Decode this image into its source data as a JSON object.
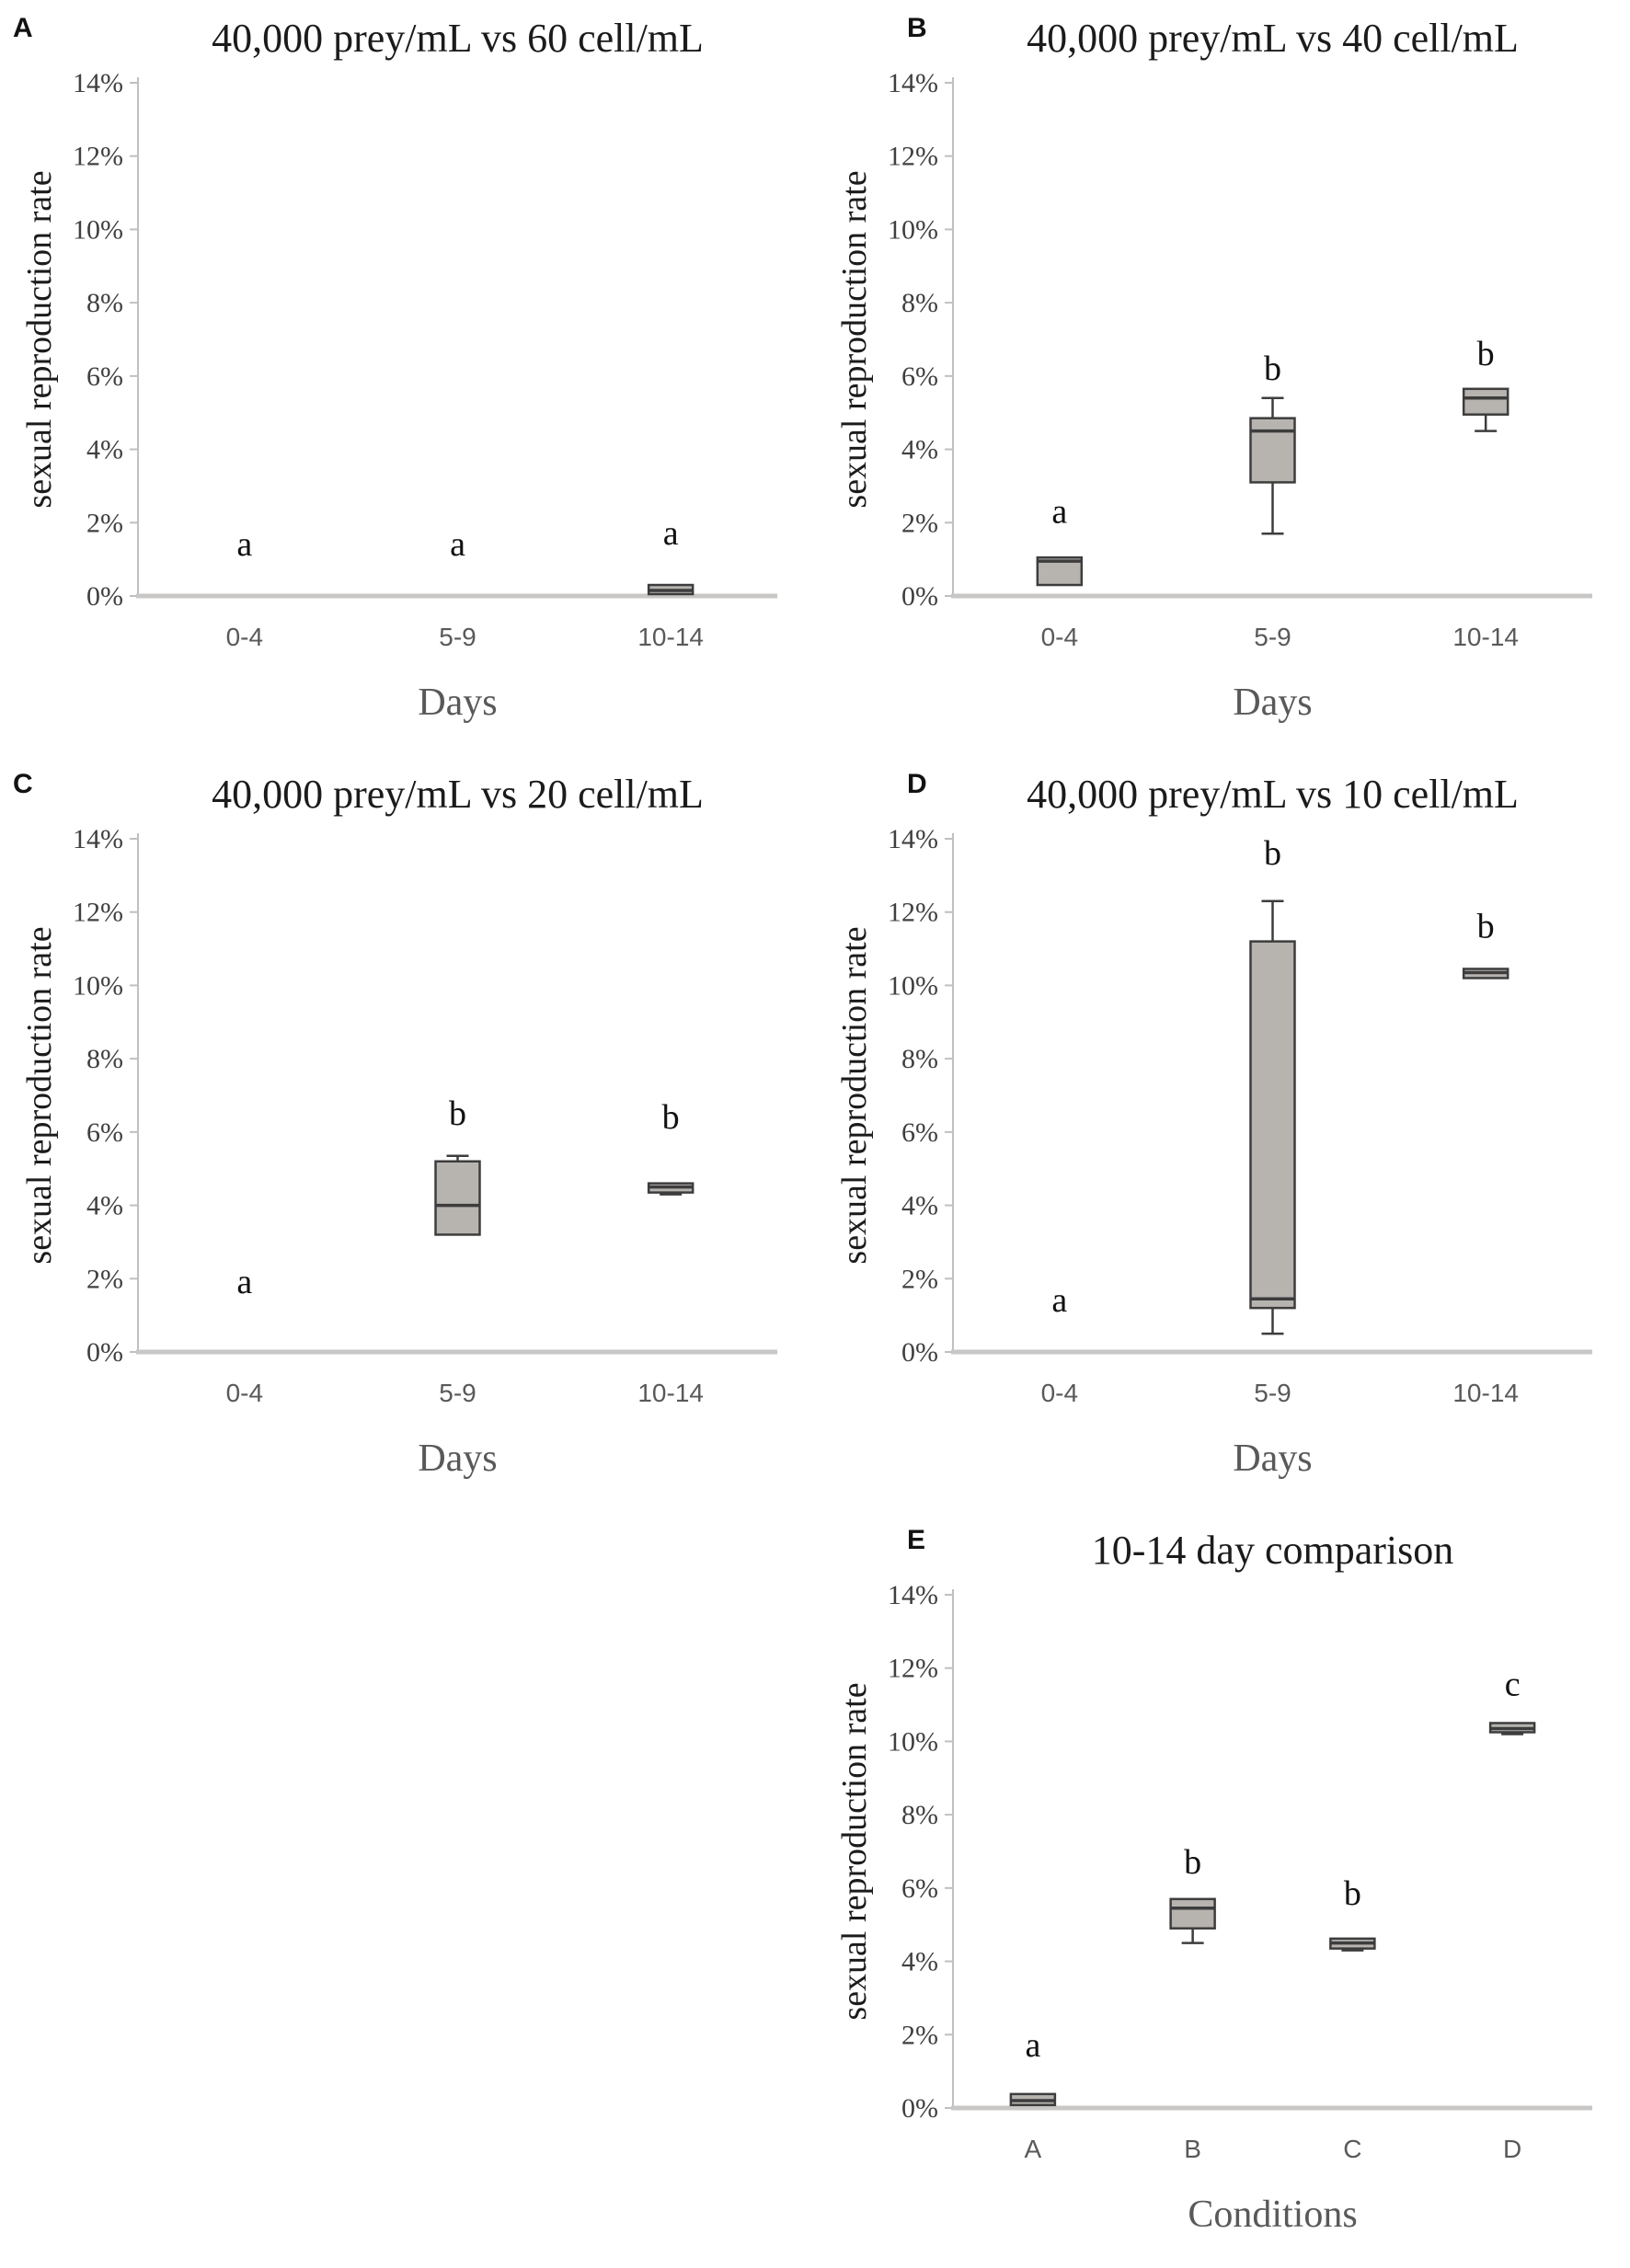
{
  "chart_data": [
    {
      "type": "boxplot",
      "panel_label": "A",
      "title": "40,000 prey/mL vs 60 cell/mL",
      "xlabel": "Days",
      "ylabel": "sexual reproduction rate",
      "ylim": [
        0,
        14
      ],
      "ytick_step": 2,
      "ytick_suffix": "%",
      "grid": false,
      "categories": [
        "0-4",
        "5-9",
        "10-14"
      ],
      "groups": [
        {
          "category": "0-4",
          "sig_letter": "a",
          "letter_y": 1.1,
          "box": null
        },
        {
          "category": "5-9",
          "sig_letter": "a",
          "letter_y": 1.1,
          "box": null
        },
        {
          "category": "10-14",
          "sig_letter": "a",
          "letter_y": 1.4,
          "box": {
            "whisker_low": 0.05,
            "q1": 0.05,
            "median": 0.15,
            "q3": 0.3,
            "whisker_high": 0.3
          }
        }
      ]
    },
    {
      "type": "boxplot",
      "panel_label": "B",
      "title": "40,000 prey/mL vs 40 cell/mL",
      "xlabel": "Days",
      "ylabel": "sexual reproduction rate",
      "ylim": [
        0,
        14
      ],
      "ytick_step": 2,
      "ytick_suffix": "%",
      "grid": false,
      "categories": [
        "0-4",
        "5-9",
        "10-14"
      ],
      "groups": [
        {
          "category": "0-4",
          "sig_letter": "a",
          "letter_y": 2.0,
          "box": {
            "whisker_low": 0.3,
            "q1": 0.3,
            "median": 0.95,
            "q3": 1.05,
            "whisker_high": 1.05
          }
        },
        {
          "category": "5-9",
          "sig_letter": "b",
          "letter_y": 5.9,
          "box": {
            "whisker_low": 1.7,
            "q1": 3.1,
            "median": 4.5,
            "q3": 4.85,
            "whisker_high": 5.4
          }
        },
        {
          "category": "10-14",
          "sig_letter": "b",
          "letter_y": 6.3,
          "box": {
            "whisker_low": 4.5,
            "q1": 4.95,
            "median": 5.4,
            "q3": 5.65,
            "whisker_high": 5.65
          }
        }
      ]
    },
    {
      "type": "boxplot",
      "panel_label": "C",
      "title": "40,000 prey/mL vs 20 cell/mL",
      "xlabel": "Days",
      "ylabel": "sexual reproduction rate",
      "ylim": [
        0,
        14
      ],
      "ytick_step": 2,
      "ytick_suffix": "%",
      "grid": false,
      "categories": [
        "0-4",
        "5-9",
        "10-14"
      ],
      "groups": [
        {
          "category": "0-4",
          "sig_letter": "a",
          "letter_y": 1.6,
          "box": null
        },
        {
          "category": "5-9",
          "sig_letter": "b",
          "letter_y": 6.2,
          "box": {
            "whisker_low": 3.2,
            "q1": 3.2,
            "median": 4.0,
            "q3": 5.2,
            "whisker_high": 5.35
          }
        },
        {
          "category": "10-14",
          "sig_letter": "b",
          "letter_y": 6.1,
          "box": {
            "whisker_low": 4.3,
            "q1": 4.35,
            "median": 4.5,
            "q3": 4.6,
            "whisker_high": 4.6
          }
        }
      ]
    },
    {
      "type": "boxplot",
      "panel_label": "D",
      "title": "40,000 prey/mL vs 10 cell/mL",
      "xlabel": "Days",
      "ylabel": "sexual reproduction rate",
      "ylim": [
        0,
        14
      ],
      "ytick_step": 2,
      "ytick_suffix": "%",
      "grid": false,
      "categories": [
        "0-4",
        "5-9",
        "10-14"
      ],
      "groups": [
        {
          "category": "0-4",
          "sig_letter": "a",
          "letter_y": 1.1,
          "box": null
        },
        {
          "category": "5-9",
          "sig_letter": "b",
          "letter_y": 13.3,
          "box": {
            "whisker_low": 0.5,
            "q1": 1.2,
            "median": 1.45,
            "q3": 11.2,
            "whisker_high": 12.3
          }
        },
        {
          "category": "10-14",
          "sig_letter": "b",
          "letter_y": 11.3,
          "box": {
            "whisker_low": 10.2,
            "q1": 10.2,
            "median": 10.35,
            "q3": 10.45,
            "whisker_high": 10.45
          }
        }
      ]
    },
    {
      "type": "boxplot",
      "panel_label": "E",
      "title": "10-14 day comparison",
      "xlabel": "Conditions",
      "ylabel": "sexual reproduction rate",
      "ylim": [
        0,
        14
      ],
      "ytick_step": 2,
      "ytick_suffix": "%",
      "grid": false,
      "categories": [
        "A",
        "B",
        "C",
        "D"
      ],
      "groups": [
        {
          "category": "A",
          "sig_letter": "a",
          "letter_y": 1.4,
          "box": {
            "whisker_low": 0.08,
            "q1": 0.08,
            "median": 0.2,
            "q3": 0.38,
            "whisker_high": 0.38
          }
        },
        {
          "category": "B",
          "sig_letter": "b",
          "letter_y": 6.4,
          "box": {
            "whisker_low": 4.5,
            "q1": 4.9,
            "median": 5.45,
            "q3": 5.7,
            "whisker_high": 5.7
          }
        },
        {
          "category": "C",
          "sig_letter": "b",
          "letter_y": 5.55,
          "box": {
            "whisker_low": 4.3,
            "q1": 4.35,
            "median": 4.5,
            "q3": 4.62,
            "whisker_high": 4.62
          }
        },
        {
          "category": "D",
          "sig_letter": "c",
          "letter_y": 11.25,
          "box": {
            "whisker_low": 10.2,
            "q1": 10.25,
            "median": 10.35,
            "q3": 10.5,
            "whisker_high": 10.5
          }
        }
      ]
    }
  ],
  "style": {
    "box_fill": "#b7b4b0",
    "box_stroke": "#3d3d3d",
    "baseline_color": "#c9c7c5",
    "axis_color": "#c0c0c0",
    "ytick_label_color": "#3f3f3f",
    "xtick_label_color": "#595959"
  }
}
